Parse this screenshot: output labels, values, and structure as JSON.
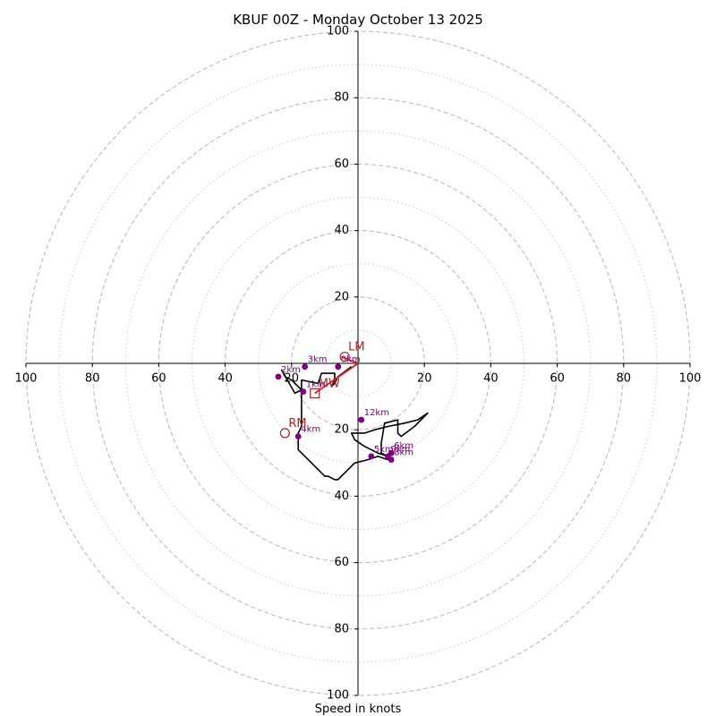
{
  "chart_data": {
    "type": "hodograph",
    "title": "KBUF 00Z - Monday October 13 2025",
    "xlabel": "Speed in knots",
    "units": "knots",
    "max_speed": 100,
    "ring_major": [
      20,
      40,
      60,
      80,
      100
    ],
    "ring_minor": [
      10,
      30,
      50,
      70,
      90
    ],
    "axis_ticks": {
      "left": [
        "100",
        "80",
        "60",
        "40",
        "20"
      ],
      "right": [
        "20",
        "40",
        "60",
        "80",
        "100"
      ],
      "top": [
        "100",
        "80",
        "60",
        "40",
        "20"
      ],
      "bottom": [
        "20",
        "40",
        "60",
        "80",
        "100"
      ]
    },
    "hodograph_trace": [
      [
        -2,
        -1
      ],
      [
        -6,
        -4
      ],
      [
        -7,
        -6
      ],
      [
        -8,
        -7
      ],
      [
        -7,
        -5
      ],
      [
        -7,
        -3
      ],
      [
        -8,
        -3
      ],
      [
        -11,
        -3
      ],
      [
        -12,
        -6
      ],
      [
        -17,
        -5
      ],
      [
        -17,
        -8
      ],
      [
        -19,
        -9
      ],
      [
        -23,
        -2
      ],
      [
        -22,
        -4
      ],
      [
        -20,
        -5
      ],
      [
        -17,
        -8
      ],
      [
        -17,
        -12
      ],
      [
        -17,
        -15
      ],
      [
        -17,
        -19
      ],
      [
        -18,
        -21
      ],
      [
        -18,
        -26
      ],
      [
        -15,
        -29
      ],
      [
        -12,
        -32
      ],
      [
        -10,
        -34
      ],
      [
        -9,
        -34
      ],
      [
        -7,
        -35
      ],
      [
        -6,
        -35
      ],
      [
        -5,
        -34
      ],
      [
        -3,
        -32
      ],
      [
        -1,
        -30
      ],
      [
        3,
        -29
      ],
      [
        6,
        -28
      ],
      [
        9,
        -29
      ],
      [
        9,
        -28
      ],
      [
        7,
        -27
      ],
      [
        7,
        -24
      ],
      [
        8,
        -18
      ],
      [
        12,
        -17
      ],
      [
        12,
        -21
      ],
      [
        13,
        -22
      ],
      [
        17,
        -19
      ],
      [
        21,
        -15
      ],
      [
        18,
        -17
      ],
      [
        14,
        -18
      ],
      [
        9,
        -19
      ],
      [
        5,
        -20
      ],
      [
        2,
        -21
      ],
      [
        -2,
        -21
      ],
      [
        -1,
        -23
      ],
      [
        2,
        -25
      ],
      [
        6,
        -27
      ],
      [
        9,
        -28
      ]
    ],
    "height_markers": [
      {
        "label": "0km",
        "u": -6,
        "v": -1
      },
      {
        "label": "1km",
        "u": -16.5,
        "v": -8.5
      },
      {
        "label": "2km",
        "u": -24,
        "v": -4
      },
      {
        "label": "3km",
        "u": -16,
        "v": -1
      },
      {
        "label": "4km",
        "u": -18,
        "v": -22
      },
      {
        "label": "5km",
        "u": 4,
        "v": -28
      },
      {
        "label": "6km",
        "u": 10,
        "v": -27
      },
      {
        "label": "8km",
        "u": 10,
        "v": -29
      },
      {
        "label": "9km",
        "u": 9,
        "v": -28
      },
      {
        "label": "12km",
        "u": 1,
        "v": -17
      }
    ],
    "storm_motion": [
      {
        "label": "LM",
        "u": -4,
        "v": 2,
        "marker": "circle"
      },
      {
        "label": "MW",
        "u": -13,
        "v": -9,
        "marker": "square"
      },
      {
        "label": "RM",
        "u": -22,
        "v": -21,
        "marker": "circle"
      }
    ],
    "storm_motion_vector": {
      "from_u": 0,
      "from_v": 0,
      "to_u": -13,
      "to_v": -9
    }
  }
}
